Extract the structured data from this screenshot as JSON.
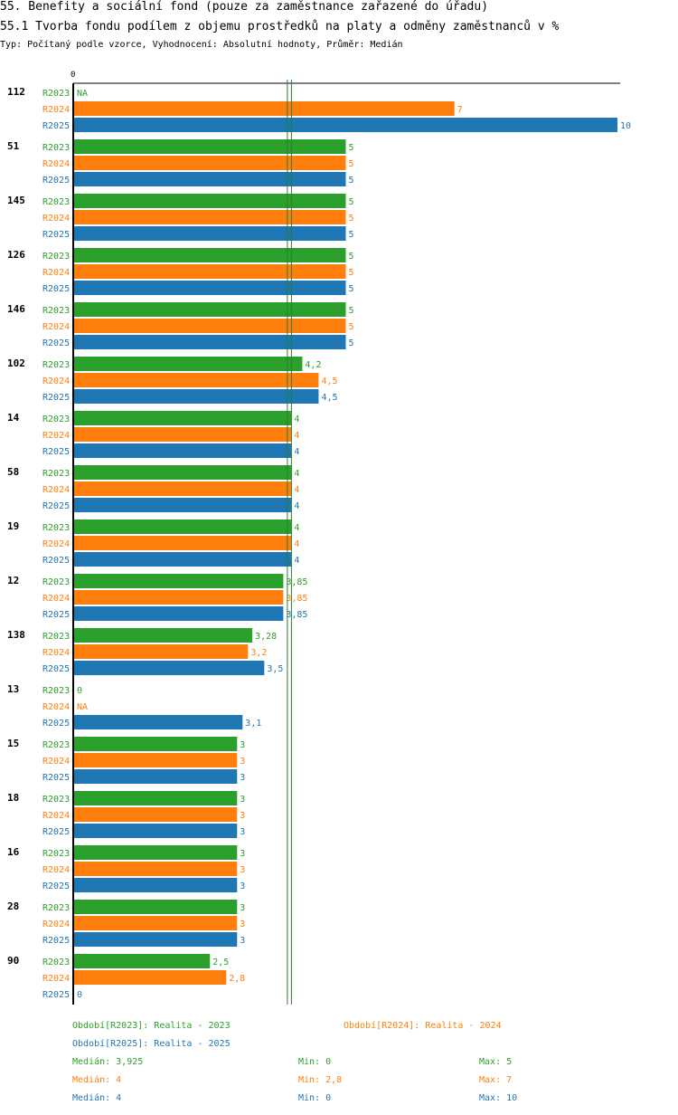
{
  "title": "55. Benefity a sociální fond (pouze za zaměstnance zařazené do úřadu)",
  "subtitle": "55.1 Tvorba fondu podílem z objemu prostředků na platy a odměny zaměstnanců v %",
  "meta": "Typ: Počítaný podle vzorce, Vyhodnocení: Absolutní hodnoty, Průměr: Medián",
  "colors": {
    "R2023": "#2ca02c",
    "R2024": "#ff7f0e",
    "R2025": "#1f77b4"
  },
  "chart_data": {
    "type": "bar",
    "orientation": "horizontal",
    "axis_zero_label": "0",
    "xlim": [
      0,
      10
    ],
    "series_names": [
      "R2023",
      "R2024",
      "R2025"
    ],
    "categories": [
      "112",
      "51",
      "145",
      "126",
      "146",
      "102",
      "14",
      "58",
      "19",
      "12",
      "138",
      "13",
      "15",
      "18",
      "16",
      "28",
      "90"
    ],
    "series": [
      {
        "name": "R2023",
        "values": [
          null,
          5,
          5,
          5,
          5,
          4.2,
          4,
          4,
          4,
          3.85,
          3.28,
          0,
          3,
          3,
          3,
          3,
          2.5
        ],
        "labels": [
          "NA",
          "5",
          "5",
          "5",
          "5",
          "4,2",
          "4",
          "4",
          "4",
          "3,85",
          "3,28",
          "0",
          "3",
          "3",
          "3",
          "3",
          "2,5"
        ]
      },
      {
        "name": "R2024",
        "values": [
          7,
          5,
          5,
          5,
          5,
          4.5,
          4,
          4,
          4,
          3.85,
          3.2,
          null,
          3,
          3,
          3,
          3,
          2.8
        ],
        "labels": [
          "7",
          "5",
          "5",
          "5",
          "5",
          "4,5",
          "4",
          "4",
          "4",
          "3,85",
          "3,2",
          "NA",
          "3",
          "3",
          "3",
          "3",
          "2,8"
        ]
      },
      {
        "name": "R2025",
        "values": [
          10,
          5,
          5,
          5,
          5,
          4.5,
          4,
          4,
          4,
          3.85,
          3.5,
          3.1,
          3,
          3,
          3,
          3,
          0
        ],
        "labels": [
          "10",
          "5",
          "5",
          "5",
          "5",
          "4,5",
          "4",
          "4",
          "4",
          "3,85",
          "3,5",
          "3,1",
          "3",
          "3",
          "3",
          "3",
          "0"
        ]
      }
    ],
    "median_lines": [
      3.925,
      4
    ]
  },
  "legend": {
    "period_2023": "Období[R2023]: Realita - 2023",
    "period_2024": "Období[R2024]: Realita - 2024",
    "period_2025": "Období[R2025]: Realita - 2025",
    "stats": [
      {
        "series": "R2023",
        "median": "Medián: 3,925",
        "min": "Min: 0",
        "max": "Max: 5"
      },
      {
        "series": "R2024",
        "median": "Medián: 4",
        "min": "Min: 2,8",
        "max": "Max: 7"
      },
      {
        "series": "R2025",
        "median": "Medián: 4",
        "min": "Min: 0",
        "max": "Max: 10"
      }
    ]
  }
}
